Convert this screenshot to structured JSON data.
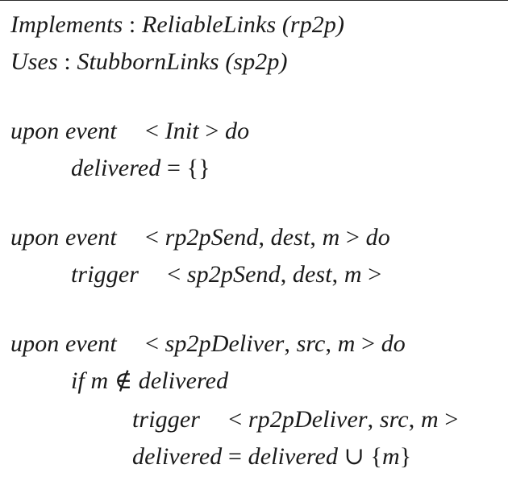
{
  "document": {
    "lines": [
      {
        "id": "implements",
        "kw": "Implements",
        "sep": ":",
        "name": "ReliableLinks",
        "paren": "(rp2p)"
      },
      {
        "id": "uses",
        "kw": "Uses",
        "sep": ":",
        "name": "StubbornLinks",
        "paren": "(sp2p)"
      },
      {
        "id": "upon-init",
        "kw1": "upon",
        "kw2": "event",
        "lt": "<",
        "event": "Init",
        "gt": ">",
        "do": "do"
      },
      {
        "id": "delivered-init",
        "lhs": "delivered",
        "eq": "=",
        "rhs": "{}"
      },
      {
        "id": "upon-send",
        "kw1": "upon",
        "kw2": "event",
        "lt": "<",
        "event": "rp2pSend",
        "c1": ",",
        "a1": "dest",
        "c2": ",",
        "a2": "m",
        "gt": ">",
        "do": "do"
      },
      {
        "id": "trigger-send",
        "kw": "trigger",
        "lt": "<",
        "event": "sp2pSend",
        "c1": ",",
        "a1": "dest",
        "c2": ",",
        "a2": "m",
        "gt": ">"
      },
      {
        "id": "upon-deliver",
        "kw1": "upon",
        "kw2": "event",
        "lt": "<",
        "event": "sp2pDeliver",
        "c1": ",",
        "a1": "src",
        "c2": ",",
        "a2": "m",
        "gt": ">",
        "do": "do"
      },
      {
        "id": "if-not-delivered",
        "kw": "if",
        "var": "m",
        "notin": "∉",
        "set": "delivered"
      },
      {
        "id": "trigger-deliver",
        "kw": "trigger",
        "lt": "<",
        "event": "rp2pDeliver",
        "c1": ",",
        "a1": "src",
        "c2": ",",
        "a2": "m",
        "gt": ">"
      },
      {
        "id": "delivered-update",
        "lhs": "delivered",
        "eq": "=",
        "set": "delivered",
        "cup": "∪",
        "lb": "{",
        "var": "m",
        "rb": "}"
      }
    ]
  }
}
